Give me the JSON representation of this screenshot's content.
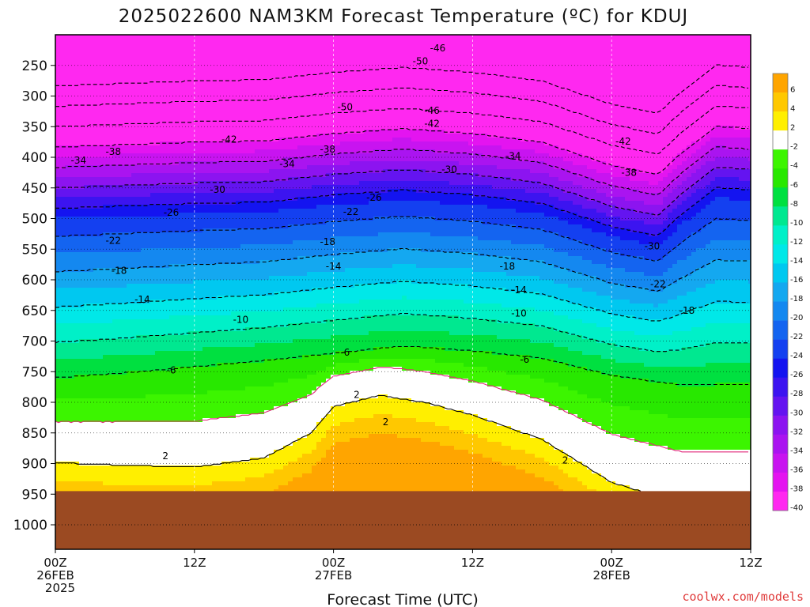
{
  "title": "2025022600 NAM3KM Forecast Temperature (ºC) for KDUJ",
  "credit": "coolwx.com/models",
  "chart_data": {
    "type": "heatmap",
    "title": "2025022600 NAM3KM Forecast Temperature (ºC) for KDUJ",
    "xlabel": "Forecast Time (UTC)",
    "ylabel": "",
    "x_range_hours": [
      0,
      60
    ],
    "y_range_hpa": [
      200,
      1040
    ],
    "y_ticks": [
      250,
      300,
      350,
      400,
      450,
      500,
      550,
      600,
      650,
      700,
      750,
      800,
      850,
      900,
      950,
      1000
    ],
    "x_ticks": [
      {
        "hour": 0,
        "lines": [
          "00Z",
          "26FEB",
          "2025"
        ]
      },
      {
        "hour": 12,
        "lines": [
          "12Z"
        ]
      },
      {
        "hour": 24,
        "lines": [
          "00Z",
          "27FEB"
        ]
      },
      {
        "hour": 36,
        "lines": [
          "12Z"
        ]
      },
      {
        "hour": 48,
        "lines": [
          "00Z",
          "28FEB"
        ]
      },
      {
        "hour": 60,
        "lines": [
          "12Z"
        ]
      }
    ],
    "ground_level_hpa": 945,
    "colorbar": {
      "labels": [
        6,
        4,
        2,
        -2,
        -4,
        -6,
        -8,
        -10,
        -12,
        -14,
        -16,
        -18,
        -20,
        -22,
        -24,
        -26,
        -28,
        -30,
        -32,
        -34,
        -36,
        -38,
        -40
      ],
      "colors": [
        "#ffa500",
        "#ffc800",
        "#ffef00",
        "#ffffff",
        "#3cf500",
        "#28e800",
        "#00e040",
        "#00e890",
        "#00f0c8",
        "#00e8e8",
        "#00c8f0",
        "#14a8f0",
        "#1488f0",
        "#1464f0",
        "#1440f0",
        "#1414f0",
        "#3c14f0",
        "#6414f0",
        "#8c14f0",
        "#aa14f0",
        "#c814f0",
        "#e414f0",
        "#ff28f0"
      ]
    },
    "isotherm_labels": [
      {
        "text": "-46",
        "h": 33,
        "p": 222
      },
      {
        "text": "-50",
        "h": 31.5,
        "p": 243
      },
      {
        "text": "-50",
        "h": 25,
        "p": 318
      },
      {
        "text": "-46",
        "h": 32.5,
        "p": 324
      },
      {
        "text": "-42",
        "h": 32.5,
        "p": 345
      },
      {
        "text": "-42",
        "h": 15,
        "p": 371
      },
      {
        "text": "-42",
        "h": 49,
        "p": 374
      },
      {
        "text": "-38",
        "h": 5,
        "p": 391
      },
      {
        "text": "-38",
        "h": 23.5,
        "p": 387
      },
      {
        "text": "-34",
        "h": 2,
        "p": 405
      },
      {
        "text": "-34",
        "h": 20,
        "p": 411
      },
      {
        "text": "-34",
        "h": 39.5,
        "p": 398
      },
      {
        "text": "-30",
        "h": 14,
        "p": 453
      },
      {
        "text": "-30",
        "h": 34,
        "p": 420
      },
      {
        "text": "-38",
        "h": 49.5,
        "p": 425
      },
      {
        "text": "-26",
        "h": 10,
        "p": 490
      },
      {
        "text": "-26",
        "h": 27.5,
        "p": 466
      },
      {
        "text": "-22",
        "h": 5,
        "p": 536
      },
      {
        "text": "-22",
        "h": 25.5,
        "p": 489
      },
      {
        "text": "-18",
        "h": 5.5,
        "p": 585
      },
      {
        "text": "-18",
        "h": 23.5,
        "p": 538
      },
      {
        "text": "-18",
        "h": 39,
        "p": 578
      },
      {
        "text": "-14",
        "h": 7.5,
        "p": 632
      },
      {
        "text": "-14",
        "h": 24,
        "p": 578
      },
      {
        "text": "-14",
        "h": 40,
        "p": 617
      },
      {
        "text": "-10",
        "h": 16,
        "p": 665
      },
      {
        "text": "-10",
        "h": 40,
        "p": 655
      },
      {
        "text": "-6",
        "h": 10,
        "p": 748
      },
      {
        "text": "-6",
        "h": 25,
        "p": 719
      },
      {
        "text": "-6",
        "h": 40.5,
        "p": 730
      },
      {
        "text": "-30",
        "h": 51.5,
        "p": 545
      },
      {
        "text": "-22",
        "h": 52,
        "p": 607
      },
      {
        "text": "-18",
        "h": 54.5,
        "p": 650
      },
      {
        "text": "2",
        "h": 9.5,
        "p": 888
      },
      {
        "text": "2",
        "h": 26,
        "p": 788
      },
      {
        "text": "2",
        "h": 28.5,
        "p": 832
      },
      {
        "text": "2",
        "h": 44,
        "p": 895
      }
    ]
  }
}
